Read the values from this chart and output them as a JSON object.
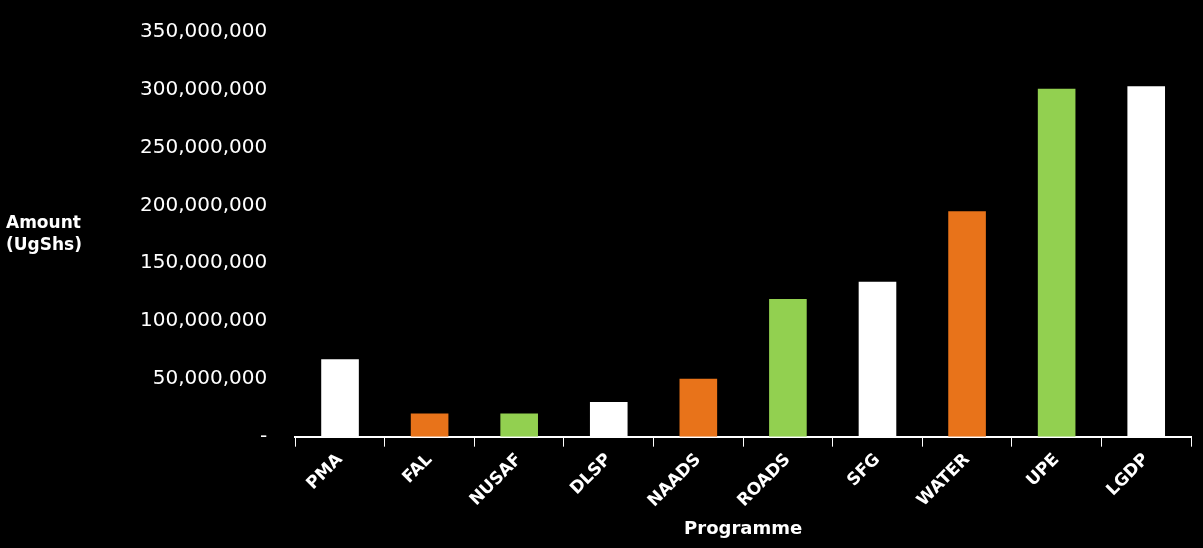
{
  "chart_data": {
    "type": "bar",
    "xlabel": "Programme",
    "ylabel": "Amount (UgShs)",
    "categories": [
      "PMA",
      "FAL",
      "NUSAF",
      "DLSP",
      "NAADS",
      "ROADS",
      "SFG",
      "WATER",
      "UPE",
      "LGDP"
    ],
    "values": [
      67000000,
      20000000,
      20000000,
      30000000,
      50000000,
      119000000,
      134000000,
      195000000,
      301000000,
      303000000
    ],
    "colors": [
      "#ffffff",
      "#e8731a",
      "#92d050",
      "#ffffff",
      "#e8731a",
      "#92d050",
      "#ffffff",
      "#e8731a",
      "#92d050",
      "#ffffff"
    ],
    "ylim": [
      0,
      350000000
    ],
    "yticks": [
      {
        "value": 0,
        "label": "-"
      },
      {
        "value": 50000000,
        "label": "50,000,000"
      },
      {
        "value": 100000000,
        "label": "100,000,000"
      },
      {
        "value": 150000000,
        "label": "150,000,000"
      },
      {
        "value": 200000000,
        "label": "200,000,000"
      },
      {
        "value": 250000000,
        "label": "250,000,000"
      },
      {
        "value": 300000000,
        "label": "300,000,000"
      },
      {
        "value": 350000000,
        "label": "350,000,000"
      }
    ],
    "grid": false,
    "legend": false
  }
}
